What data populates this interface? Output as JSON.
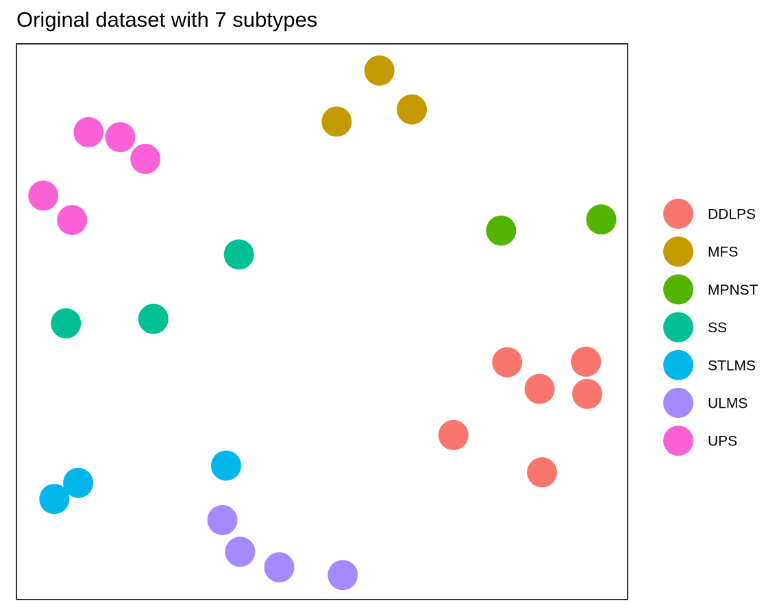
{
  "chart_data": {
    "type": "scatter",
    "title": "Original dataset with 7 subtypes",
    "xlabel": "",
    "ylabel": "",
    "axes_visible": false,
    "grid": false,
    "panel_border": true,
    "xlim": [
      0,
      100
    ],
    "ylim": [
      0,
      100
    ],
    "legend_position": "right",
    "series": [
      {
        "name": "DDLPS",
        "color": "#F8766D",
        "points": [
          {
            "x": 80.3,
            "y": 42.7
          },
          {
            "x": 93.2,
            "y": 42.8
          },
          {
            "x": 85.6,
            "y": 37.9
          },
          {
            "x": 93.4,
            "y": 37.0
          },
          {
            "x": 71.5,
            "y": 29.6
          },
          {
            "x": 86.0,
            "y": 22.9
          }
        ]
      },
      {
        "name": "MFS",
        "color": "#C49A00",
        "points": [
          {
            "x": 59.4,
            "y": 95.2
          },
          {
            "x": 64.7,
            "y": 88.2
          },
          {
            "x": 52.4,
            "y": 86.0
          }
        ]
      },
      {
        "name": "MPNST",
        "color": "#53B400",
        "points": [
          {
            "x": 79.3,
            "y": 66.4
          },
          {
            "x": 95.7,
            "y": 68.4
          }
        ]
      },
      {
        "name": "SS",
        "color": "#00C094",
        "points": [
          {
            "x": 36.4,
            "y": 62.1
          },
          {
            "x": 22.4,
            "y": 50.5
          },
          {
            "x": 8.1,
            "y": 49.7
          }
        ]
      },
      {
        "name": "STLMS",
        "color": "#00B6EB",
        "points": [
          {
            "x": 34.3,
            "y": 24.1
          },
          {
            "x": 10.1,
            "y": 21.0
          },
          {
            "x": 6.2,
            "y": 18.1
          }
        ]
      },
      {
        "name": "ULMS",
        "color": "#A58AFF",
        "points": [
          {
            "x": 33.7,
            "y": 14.3
          },
          {
            "x": 36.6,
            "y": 8.6
          },
          {
            "x": 43.0,
            "y": 5.8
          },
          {
            "x": 53.4,
            "y": 4.4
          }
        ]
      },
      {
        "name": "UPS",
        "color": "#FB61D7",
        "points": [
          {
            "x": 11.8,
            "y": 84.1
          },
          {
            "x": 17.0,
            "y": 83.2
          },
          {
            "x": 21.1,
            "y": 79.3
          },
          {
            "x": 4.4,
            "y": 72.7
          },
          {
            "x": 9.1,
            "y": 68.3
          }
        ]
      }
    ]
  }
}
